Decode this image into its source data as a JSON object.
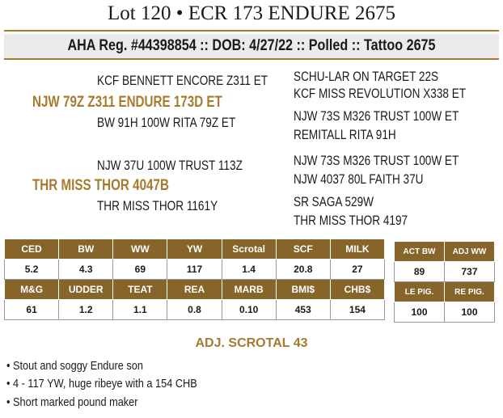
{
  "header": {
    "title": "Lot 120 • ECR 173 ENDURE 2675",
    "subtitle": "AHA Reg. #44398854 :: DOB: 4/27/22 :: Polled :: Tattoo 2675"
  },
  "pedigree": {
    "sire": "NJW 79Z Z311 ENDURE 173D ET",
    "sire_sire": "KCF BENNETT ENCORE Z311 ET",
    "sire_dam": "BW 91H 100W RITA 79Z ET",
    "sire_sire_sire": "SCHU-LAR ON TARGET 22S",
    "sire_sire_dam": "KCF MISS REVOLUTION X338 ET",
    "sire_dam_sire": "NJW 73S M326 TRUST 100W ET",
    "sire_dam_dam": "REMITALL RITA 91H",
    "dam": "THR MISS THOR 4047B",
    "dam_sire": "NJW 37U 100W TRUST 113Z",
    "dam_dam": "THR MISS THOR 1161Y",
    "dam_sire_sire": "NJW 73S M326 TRUST 100W ET",
    "dam_sire_dam": "NJW 4037 80L FAITH 37U",
    "dam_dam_sire": "SR SAGA 529W",
    "dam_dam_dam": "THR MISS THOR 4197"
  },
  "epd_table": {
    "rows": [
      [
        "CED",
        "BW",
        "WW",
        "YW",
        "Scrotal",
        "SCF",
        "MILK"
      ],
      [
        "5.2",
        "4.3",
        "69",
        "117",
        "1.4",
        "20.8",
        "27"
      ],
      [
        "M&G",
        "UDDER",
        "TEAT",
        "REA",
        "MARB",
        "BMI$",
        "CHB$"
      ],
      [
        "61",
        "1.2",
        "1.1",
        "0.8",
        "0.10",
        "453",
        "154"
      ]
    ]
  },
  "side_table": {
    "rows": [
      [
        "ACT BW",
        "ADJ WW"
      ],
      [
        "89",
        "737"
      ],
      [
        "LE PIG.",
        "RE PIG."
      ],
      [
        "100",
        "100"
      ]
    ]
  },
  "adj_scrotal": "ADJ. SCROTAL 43",
  "bullets": [
    "• Stout and soggy Endure son",
    "• 4 - 117 YW, huge ribeye with a 154 CHB",
    "• Short marked pound maker"
  ]
}
